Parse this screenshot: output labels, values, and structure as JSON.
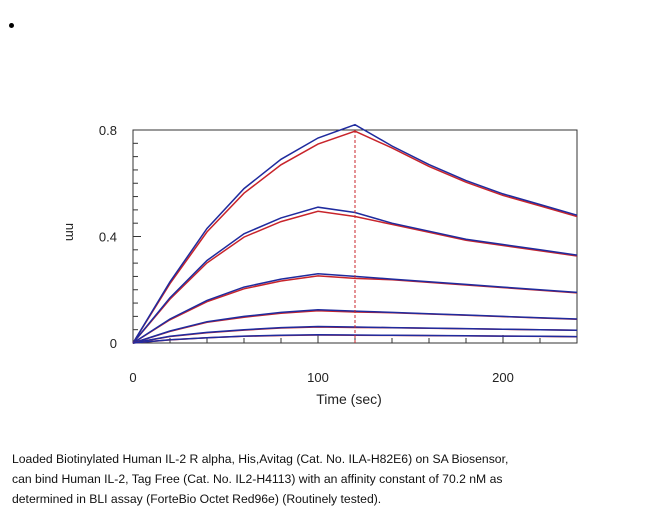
{
  "chart_data": {
    "type": "line",
    "title": "",
    "xlabel": "Time (sec)",
    "ylabel": "nm",
    "xlim": [
      0,
      240
    ],
    "ylim": [
      0,
      0.8
    ],
    "xticks": [
      0,
      100,
      200
    ],
    "yticks": [
      0,
      0.4,
      0.8
    ],
    "ytick_labels": [
      "0",
      "0.4",
      "0.8"
    ],
    "xtick_labels": [
      "0",
      "100",
      "200"
    ],
    "grid": false,
    "assoc_end_time": 120,
    "colors": {
      "measured": "#1f2b9e",
      "fitted": "#c8242b",
      "marker_line": "#c8242b"
    },
    "series": [
      {
        "x": [
          0,
          20,
          40,
          60,
          80,
          100,
          120,
          140,
          160,
          180,
          200,
          220,
          240
        ],
        "y": [
          0,
          0.23,
          0.43,
          0.58,
          0.69,
          0.77,
          0.82,
          0.74,
          0.67,
          0.61,
          0.56,
          0.52,
          0.48
        ]
      },
      {
        "x": [
          0,
          20,
          40,
          60,
          80,
          100,
          120,
          140,
          160,
          180,
          200,
          220,
          240
        ],
        "y": [
          0,
          0.17,
          0.31,
          0.41,
          0.47,
          0.51,
          0.49,
          0.45,
          0.42,
          0.39,
          0.37,
          0.35,
          0.33
        ]
      },
      {
        "x": [
          0,
          20,
          40,
          60,
          80,
          100,
          120,
          140,
          160,
          180,
          200,
          220,
          240
        ],
        "y": [
          0,
          0.09,
          0.16,
          0.21,
          0.24,
          0.26,
          0.25,
          0.24,
          0.23,
          0.22,
          0.21,
          0.2,
          0.19
        ]
      },
      {
        "x": [
          0,
          20,
          40,
          60,
          80,
          100,
          120,
          140,
          160,
          180,
          200,
          220,
          240
        ],
        "y": [
          0,
          0.045,
          0.08,
          0.1,
          0.115,
          0.125,
          0.12,
          0.115,
          0.11,
          0.105,
          0.1,
          0.095,
          0.09
        ]
      },
      {
        "x": [
          0,
          20,
          40,
          60,
          80,
          100,
          120,
          140,
          160,
          180,
          200,
          220,
          240
        ],
        "y": [
          0,
          0.025,
          0.04,
          0.05,
          0.058,
          0.062,
          0.06,
          0.058,
          0.056,
          0.054,
          0.052,
          0.05,
          0.048
        ]
      },
      {
        "x": [
          0,
          20,
          40,
          60,
          80,
          100,
          120,
          140,
          160,
          180,
          200,
          220,
          240
        ],
        "y": [
          0,
          0.012,
          0.02,
          0.026,
          0.029,
          0.031,
          0.03,
          0.029,
          0.028,
          0.027,
          0.026,
          0.025,
          0.024
        ]
      }
    ]
  },
  "caption": {
    "line1": "Loaded Biotinylated Human IL-2 R alpha, His,Avitag (Cat. No. ILA-H82E6) on SA Biosensor,",
    "line2": "can bind Human IL-2, Tag Free (Cat. No. IL2-H4113) with an affinity constant of 70.2 nM as",
    "line3": "determined in BLI assay (ForteBio Octet Red96e) (Routinely tested)."
  }
}
